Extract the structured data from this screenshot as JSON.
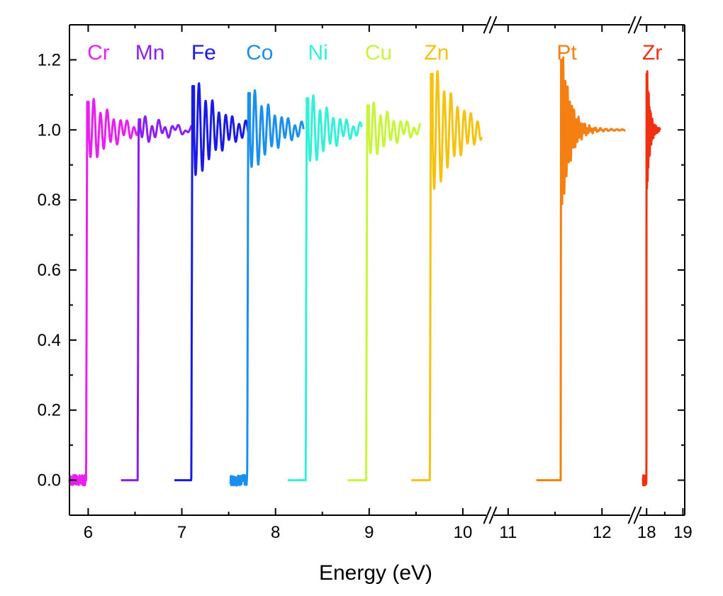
{
  "chart_data": {
    "type": "line",
    "title": "",
    "xlabel": "Energy (eV)",
    "ylabel": "",
    "ylim": [
      -0.1,
      1.3
    ],
    "yticks": [
      "0.0",
      "0.2",
      "0.4",
      "0.6",
      "0.8",
      "1.0",
      "1.2"
    ],
    "ytick_values": [
      0.0,
      0.2,
      0.4,
      0.6,
      0.8,
      1.0,
      1.2
    ],
    "x_segments": [
      {
        "range": [
          5.8,
          10.25
        ],
        "ticks": [
          "6",
          "7",
          "8",
          "9",
          "10"
        ],
        "tick_values": [
          6,
          7,
          8,
          9,
          10
        ]
      },
      {
        "range": [
          10.85,
          12.3
        ],
        "ticks": [
          "11",
          "12"
        ],
        "tick_values": [
          11,
          12
        ]
      },
      {
        "range": [
          17.8,
          19.05
        ],
        "ticks": [
          "18",
          "19"
        ],
        "tick_values": [
          18,
          19
        ]
      }
    ],
    "axis_break_marks": true,
    "grid": false,
    "series": [
      {
        "name": "Cr",
        "color": "#e81ff0",
        "segment": 0,
        "edge": 5.989,
        "start": 5.8,
        "end": 6.55,
        "pre": 0.0,
        "peak": 1.08,
        "noise": true
      },
      {
        "name": "Mn",
        "color": "#8a1ff0",
        "segment": 0,
        "edge": 6.539,
        "start": 6.35,
        "end": 7.12,
        "pre": 0.0,
        "peak": 1.03
      },
      {
        "name": "Fe",
        "color": "#1a1ae6",
        "segment": 0,
        "edge": 7.112,
        "start": 6.92,
        "end": 7.72,
        "pre": 0.0,
        "peak": 1.125
      },
      {
        "name": "Co",
        "color": "#1a8ff0",
        "segment": 0,
        "edge": 7.709,
        "start": 7.52,
        "end": 8.3,
        "pre": 0.0,
        "peak": 1.105,
        "noise": true
      },
      {
        "name": "Ni",
        "color": "#33f0d6",
        "segment": 0,
        "edge": 8.333,
        "start": 8.13,
        "end": 8.92,
        "pre": 0.0,
        "peak": 1.09
      },
      {
        "name": "Cu",
        "color": "#c6f53a",
        "segment": 0,
        "edge": 8.979,
        "start": 8.77,
        "end": 9.55,
        "pre": 0.0,
        "peak": 1.07
      },
      {
        "name": "Zn",
        "color": "#f5c30f",
        "segment": 0,
        "edge": 9.659,
        "start": 9.45,
        "end": 10.2,
        "pre": 0.0,
        "peak": 1.16
      },
      {
        "name": "Pt",
        "color": "#f57f10",
        "segment": 1,
        "edge": 11.564,
        "start": 11.3,
        "end": 12.25,
        "pre": 0.0,
        "peak": 1.2
      },
      {
        "name": "Zr",
        "color": "#f03010",
        "segment": 2,
        "edge": 17.998,
        "start": 17.9,
        "end": 18.37,
        "pre": 0.0,
        "peak": 1.16,
        "noise": true
      }
    ]
  }
}
